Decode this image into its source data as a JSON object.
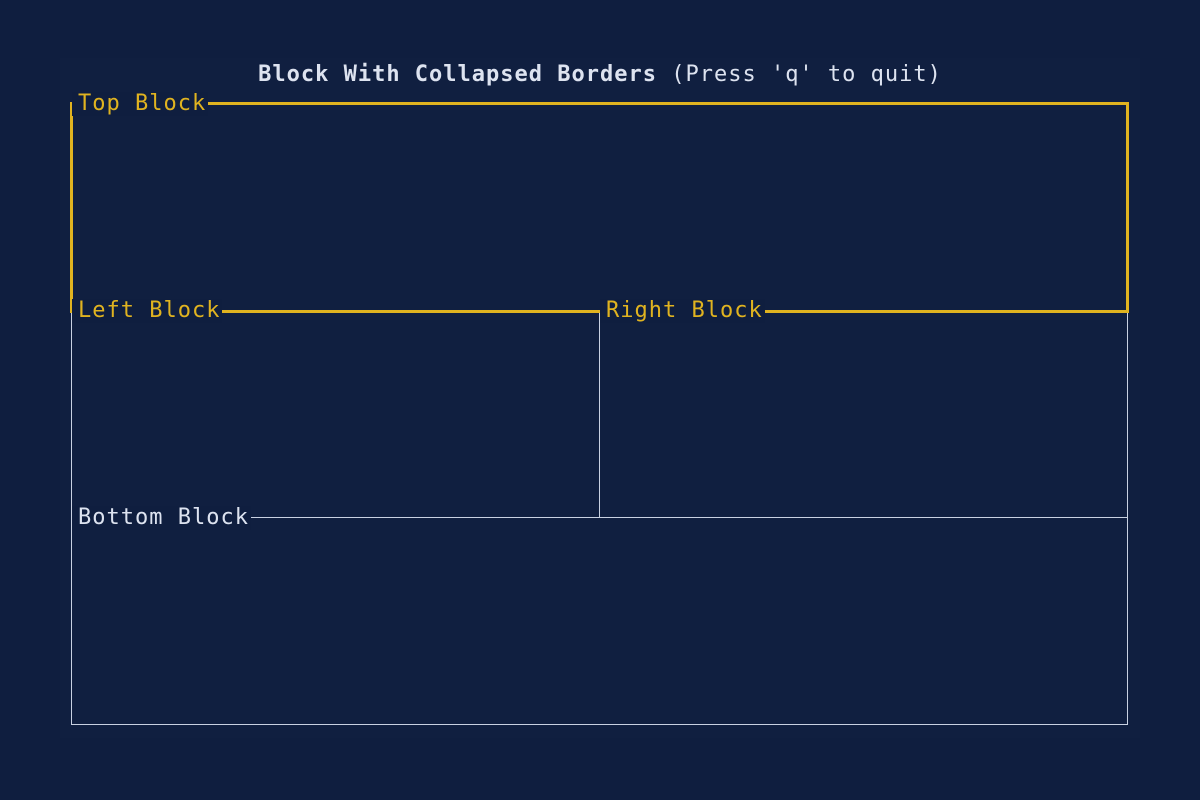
{
  "app": {
    "title_bold": "Block With Collapsed Borders",
    "title_hint": " (Press 'q' to quit)"
  },
  "blocks": {
    "top": {
      "title": "Top Block",
      "highlighted": true
    },
    "left": {
      "title": "Left Block",
      "highlighted": false
    },
    "right": {
      "title": "Right Block",
      "highlighted": false
    },
    "bottom": {
      "title": "Bottom Block",
      "highlighted": false
    }
  },
  "colors": {
    "background": "#0f1e3f",
    "highlight": "#e0b320",
    "border": "#c9d1e2",
    "text": "#dde3f0"
  }
}
